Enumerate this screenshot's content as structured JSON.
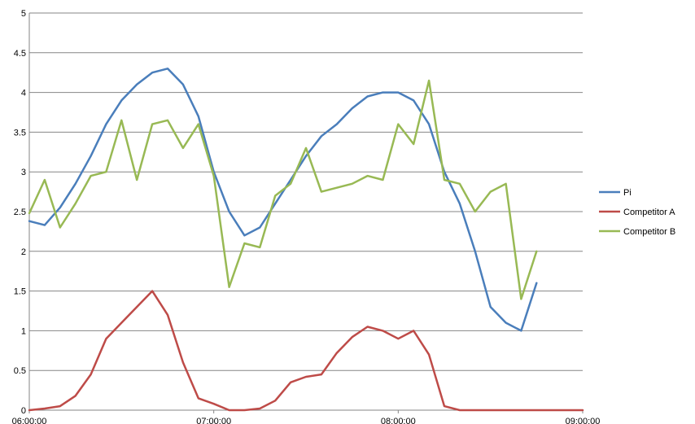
{
  "chart_data": {
    "type": "line",
    "x": [
      "06:00:00",
      "06:05:00",
      "06:10:00",
      "06:15:00",
      "06:20:00",
      "06:25:00",
      "06:30:00",
      "06:35:00",
      "06:40:00",
      "06:45:00",
      "06:50:00",
      "06:55:00",
      "07:00:00",
      "07:05:00",
      "07:10:00",
      "07:15:00",
      "07:20:00",
      "07:25:00",
      "07:30:00",
      "07:35:00",
      "07:40:00",
      "07:45:00",
      "07:50:00",
      "07:55:00",
      "08:00:00",
      "08:05:00",
      "08:10:00",
      "08:15:00",
      "08:20:00",
      "08:25:00",
      "08:30:00",
      "08:35:00",
      "08:40:00",
      "08:45:00",
      "08:50:00",
      "08:55:00",
      "09:00:00"
    ],
    "x_tick_labels": [
      "06:00:00",
      "07:00:00",
      "08:00:00",
      "09:00:00"
    ],
    "y_ticks": [
      "0",
      "0.5",
      "1",
      "1.5",
      "2",
      "2.5",
      "3",
      "3.5",
      "4",
      "4.5",
      "5"
    ],
    "ylim": [
      0,
      5
    ],
    "grid": "horizontal",
    "legend_position": "right",
    "series": [
      {
        "name": "Pi",
        "color": "#4a7ebb",
        "values": [
          2.38,
          2.33,
          2.55,
          2.85,
          3.2,
          3.6,
          3.9,
          4.1,
          4.25,
          4.3,
          4.1,
          3.7,
          3.0,
          2.5,
          2.2,
          2.3,
          2.6,
          2.9,
          3.2,
          3.45,
          3.6,
          3.8,
          3.95,
          4.0,
          4.0,
          3.9,
          3.6,
          3.0,
          2.6,
          2.0,
          1.3,
          1.1,
          1.0,
          1.6,
          null,
          null,
          null
        ]
      },
      {
        "name": "Competitor A",
        "color": "#be4b48",
        "values": [
          0.0,
          0.02,
          0.05,
          0.18,
          0.45,
          0.9,
          1.1,
          1.3,
          1.5,
          1.2,
          0.6,
          0.15,
          0.08,
          0.0,
          0.0,
          0.02,
          0.12,
          0.35,
          0.42,
          0.45,
          0.72,
          0.92,
          1.05,
          1.0,
          0.9,
          1.0,
          0.7,
          0.05,
          0.0,
          0.0,
          0.0,
          0.0,
          0.0,
          0.0,
          0.0,
          0.0,
          0.0
        ]
      },
      {
        "name": "Competitor B",
        "color": "#98b954",
        "values": [
          2.48,
          2.9,
          2.3,
          2.6,
          2.95,
          3.0,
          3.65,
          2.9,
          3.6,
          3.65,
          3.3,
          3.6,
          2.95,
          1.55,
          2.1,
          2.05,
          2.7,
          2.85,
          3.3,
          2.75,
          2.8,
          2.85,
          2.95,
          2.9,
          3.6,
          3.35,
          4.15,
          2.9,
          2.85,
          2.5,
          2.75,
          2.85,
          1.4,
          2.0,
          null,
          null,
          null
        ]
      }
    ]
  }
}
